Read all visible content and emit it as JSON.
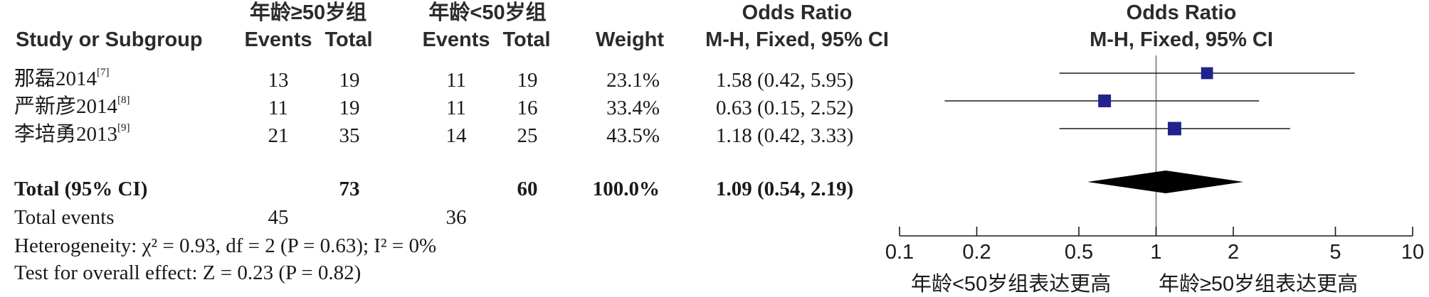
{
  "header": {
    "group1": "年龄≥50岁组",
    "group2": "年龄<50岁组",
    "study_col": "Study or Subgroup",
    "events": "Events",
    "total": "Total",
    "weight": "Weight",
    "or_title": "Odds Ratio",
    "or_method": "M-H, Fixed, 95% CI",
    "plot_title": "Odds Ratio",
    "plot_method": "M-H, Fixed, 95% CI"
  },
  "studies": [
    {
      "name": "那磊2014",
      "ref": "[7]",
      "e1": "13",
      "t1": "19",
      "e2": "11",
      "t2": "19",
      "weight": "23.1%",
      "ci_text": "1.58 (0.42, 5.95)"
    },
    {
      "name": "严新彦2014",
      "ref": "[8]",
      "e1": "11",
      "t1": "19",
      "e2": "11",
      "t2": "16",
      "weight": "33.4%",
      "ci_text": "0.63 (0.15, 2.52)"
    },
    {
      "name": "李培勇2013",
      "ref": "[9]",
      "e1": "21",
      "t1": "35",
      "e2": "14",
      "t2": "25",
      "weight": "43.5%",
      "ci_text": "1.18 (0.42, 3.33)"
    }
  ],
  "total": {
    "label": "Total (95% CI)",
    "t1": "73",
    "t2": "60",
    "weight": "100.0%",
    "ci_text": "1.09 (0.54, 2.19)"
  },
  "total_events": {
    "label": "Total events",
    "e1": "45",
    "e2": "36"
  },
  "heterogeneity": "Heterogeneity: χ² = 0.93, df = 2 (P = 0.63); I² = 0%",
  "overall_effect": "Test for overall effect: Z = 0.23 (P = 0.82)",
  "axis": {
    "favours_left": "年龄<50岁组表达更高",
    "favours_right": "年龄≥50岁组表达更高"
  },
  "colors": {
    "marker": "#22228c",
    "line": "#1a1a1a",
    "diamond": "#000000"
  },
  "chart_data": {
    "type": "forest",
    "scale": "log",
    "xlim": [
      0.1,
      10
    ],
    "ticks": [
      0.1,
      0.2,
      0.5,
      1,
      2,
      5,
      10
    ],
    "tick_labels": [
      "0.1",
      "0.2",
      "0.5",
      "1",
      "2",
      "5",
      "10"
    ],
    "null_value": 1,
    "series": [
      {
        "name": "那磊2014",
        "or": 1.58,
        "lo": 0.42,
        "hi": 5.95,
        "weight": 23.1
      },
      {
        "name": "严新彦2014",
        "or": 0.63,
        "lo": 0.15,
        "hi": 2.52,
        "weight": 33.4
      },
      {
        "name": "李培勇2013",
        "or": 1.18,
        "lo": 0.42,
        "hi": 3.33,
        "weight": 43.5
      }
    ],
    "pooled": {
      "or": 1.09,
      "lo": 0.54,
      "hi": 2.19
    }
  }
}
